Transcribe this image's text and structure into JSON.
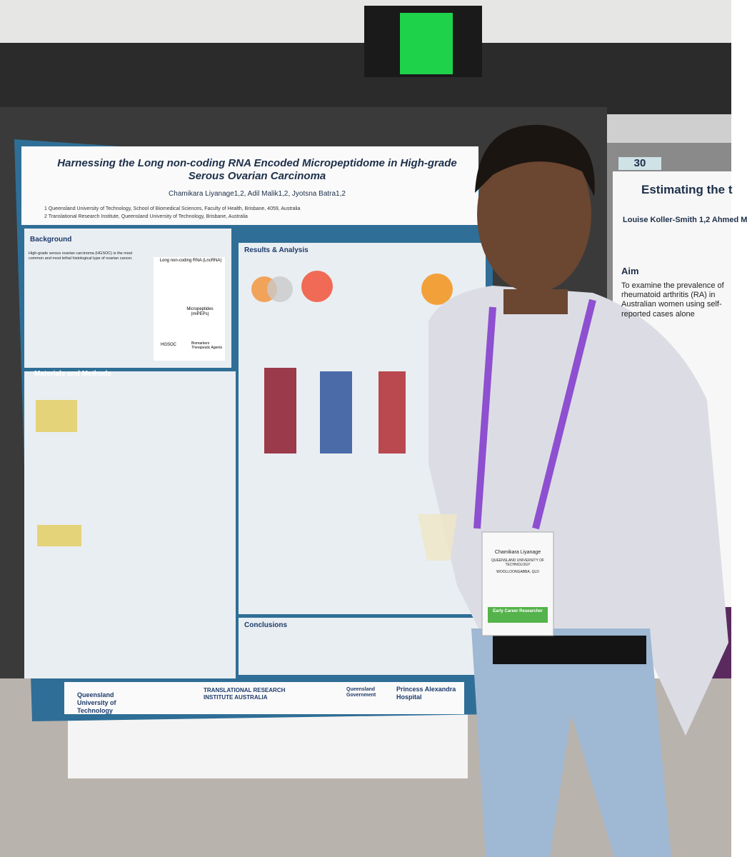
{
  "poster": {
    "title": "Harnessing the Long non-coding RNA Encoded Micropeptidome in High-grade Serous Ovarian Carcinoma",
    "authors": "Chamikara Liyanage1,2, Adil Malik1,2, Jyotsna Batra1,2",
    "affiliations": [
      "1 Queensland University of Technology, School of Biomedical Sciences, Faculty of Health, Brisbane, 4059, Australia",
      "2 Translational Research Institute, Queensland University of Technology, Brisbane, Australia"
    ],
    "sections": [
      "Background",
      "Materials and Methods",
      "Results & Analysis",
      "Conclusions"
    ],
    "background_text": "High-grade serous ovarian carcinoma (HGSOC) is the most common and most lethal histological type of ovarian cancer.",
    "diagram_labels": [
      "Long non-coding RNA (LncRNA)",
      "Micropeptides (miPEPs)",
      "HGSOC",
      "Biomarkers Therapeutic Agents"
    ],
    "logos": [
      "Queensland University of Technology",
      "TRANSLATIONAL RESEARCH INSTITUTE AUSTRALIA",
      "Queensland Government",
      "Princess Alexandra Hospital"
    ]
  },
  "badge": {
    "name": "Chamikara Liyanage",
    "org": "QUEENSLAND UNIVERSITY OF TECHNOLOGY",
    "location": "WOOLLOONGABBA, QLD",
    "tag": "Early Career Researcher"
  },
  "neighbor_poster": {
    "number": "30",
    "title": "Estimating the t",
    "authors": "Louise Koller-Smith 1,2 Ahmed M",
    "heading": "Aim",
    "text": "To examine the prevalence of rheumatoid arthritis (RA) in Australian women using self-reported cases alone"
  }
}
